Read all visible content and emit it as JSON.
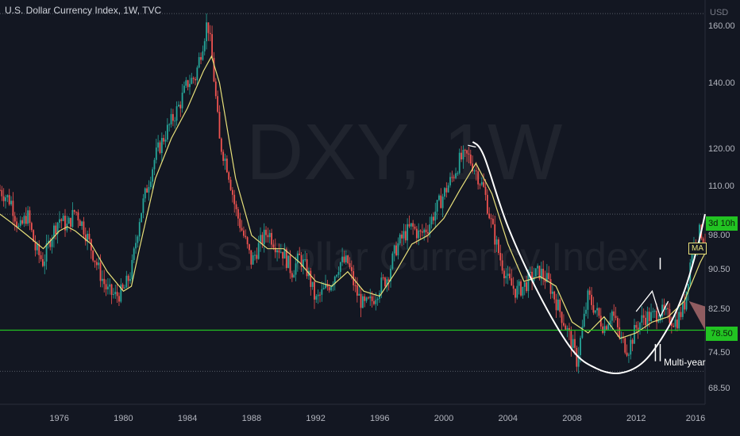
{
  "chart_title": "U.S. Dollar Currency Index, 1W, TVC",
  "watermark": {
    "symbol": "DXY, 1W",
    "name": "U.S. Dollar Currency Index"
  },
  "price_axis": {
    "unit_label": "USD",
    "ticks": [
      "160.00",
      "140.00",
      "120.00",
      "110.00",
      "98.00",
      "90.50",
      "82.50",
      "74.50",
      "68.50"
    ]
  },
  "time_axis": {
    "ticks": [
      "1976",
      "1980",
      "1984",
      "1988",
      "1992",
      "1996",
      "2000",
      "2004",
      "2008",
      "2012",
      "2016"
    ]
  },
  "tags": {
    "countdown": "3d 10h",
    "horizontal_level": "78.50"
  },
  "annotations": {
    "ma_label": "MA",
    "cup_note": "Multi-year"
  },
  "colors": {
    "background": "#131722",
    "ma_line": "#e8e07a",
    "level_line": "#22c322",
    "up_candle": "#26a69a",
    "down_candle": "#ef5350",
    "cup": "#ffffff",
    "grid_dotted": "#555b66"
  },
  "chart_data": {
    "type": "candlestick",
    "symbol": "DXY",
    "interval": "1W",
    "y_scale": "log",
    "ylim": [
      66,
      170
    ],
    "xlim": [
      1972.3,
      2016.3
    ],
    "horizontal_level": 78.5,
    "dotted_levels": [
      164.7,
      103.0,
      71.3
    ],
    "close_path": {
      "x": [
        1972.3,
        1973.0,
        1973.5,
        1974.0,
        1974.5,
        1975.0,
        1975.5,
        1976.0,
        1976.5,
        1977.0,
        1977.5,
        1978.0,
        1978.5,
        1979.0,
        1979.5,
        1980.0,
        1980.5,
        1981.0,
        1981.5,
        1982.0,
        1982.5,
        1983.0,
        1983.5,
        1984.0,
        1984.5,
        1985.0,
        1985.25,
        1985.5,
        1986.0,
        1986.5,
        1987.0,
        1987.5,
        1988.0,
        1988.5,
        1989.0,
        1989.5,
        1990.0,
        1990.5,
        1991.0,
        1991.5,
        1992.0,
        1992.5,
        1993.0,
        1993.5,
        1994.0,
        1994.5,
        1995.0,
        1995.5,
        1996.0,
        1996.5,
        1997.0,
        1997.5,
        1998.0,
        1998.5,
        1999.0,
        1999.5,
        2000.0,
        2000.5,
        2001.0,
        2001.5,
        2002.0,
        2002.5,
        2003.0,
        2003.5,
        2004.0,
        2004.5,
        2005.0,
        2005.5,
        2006.0,
        2006.5,
        2007.0,
        2007.5,
        2008.0,
        2008.3,
        2008.6,
        2009.0,
        2009.5,
        2010.0,
        2010.5,
        2011.0,
        2011.5,
        2012.0,
        2012.5,
        2013.0,
        2013.5,
        2014.0,
        2014.5,
        2015.0,
        2015.5,
        2016.0,
        2016.3
      ],
      "y": [
        109,
        106,
        99,
        103,
        95,
        92,
        98,
        102,
        100,
        104,
        100,
        95,
        90,
        86,
        85,
        86,
        90,
        102,
        110,
        118,
        123,
        128,
        133,
        140,
        142,
        155,
        162,
        150,
        122,
        115,
        104,
        98,
        92,
        96,
        99,
        96,
        94,
        90,
        93,
        90,
        84,
        86,
        88,
        92,
        92,
        86,
        83,
        84,
        87,
        89,
        95,
        98,
        100,
        98,
        100,
        104,
        108,
        112,
        117,
        118,
        114,
        109,
        100,
        93,
        88,
        86,
        87,
        89,
        90,
        88,
        84,
        80,
        76,
        73,
        78,
        85,
        82,
        79,
        82,
        77,
        75,
        79,
        81,
        81,
        82,
        81,
        80,
        83,
        95,
        99,
        97
      ]
    },
    "ma_path": {
      "x": [
        1972.3,
        1973.0,
        1974.0,
        1975.0,
        1976.0,
        1976.5,
        1977.0,
        1978.0,
        1979.0,
        1980.0,
        1980.5,
        1981.0,
        1982.0,
        1983.0,
        1984.0,
        1985.0,
        1985.5,
        1986.0,
        1987.0,
        1988.0,
        1989.0,
        1990.0,
        1991.0,
        1992.0,
        1993.0,
        1994.0,
        1995.0,
        1996.0,
        1997.0,
        1998.0,
        1999.0,
        2000.0,
        2001.0,
        2002.0,
        2003.0,
        2004.0,
        2005.0,
        2006.0,
        2007.0,
        2008.0,
        2009.0,
        2010.0,
        2011.0,
        2012.0,
        2013.0,
        2014.0,
        2015.0,
        2016.0,
        2016.3
      ],
      "y": [
        103,
        101,
        98,
        95,
        99,
        100,
        99,
        96,
        90,
        86,
        87,
        95,
        112,
        123,
        132,
        144,
        149,
        140,
        112,
        98,
        95,
        95,
        92,
        88,
        87,
        90,
        86,
        85,
        90,
        96,
        98,
        102,
        109,
        116,
        108,
        96,
        88,
        89,
        87,
        80,
        78,
        81,
        77,
        78,
        80,
        81,
        84,
        92,
        94
      ]
    },
    "cup_path": {
      "x": [
        2001.8,
        2002.5,
        2004.0,
        2006.0,
        2008.0,
        2009.5,
        2011.0,
        2012.5,
        2014.0,
        2015.0,
        2015.8,
        2016.3
      ],
      "y": [
        122,
        118,
        100,
        85,
        75,
        71.8,
        71,
        73,
        79,
        86,
        95,
        103
      ]
    },
    "annotation_lines": [
      {
        "x": [
          2001.5,
          2002.0
        ],
        "y": [
          121,
          120.5
        ]
      },
      {
        "x": [
          2012.0,
          2013.0,
          2013.5,
          2014.0
        ],
        "y": [
          82,
          86,
          81,
          84
        ]
      }
    ],
    "arrow": {
      "x": [
        2015.3,
        2016.3
      ],
      "y": [
        84,
        80
      ]
    }
  }
}
